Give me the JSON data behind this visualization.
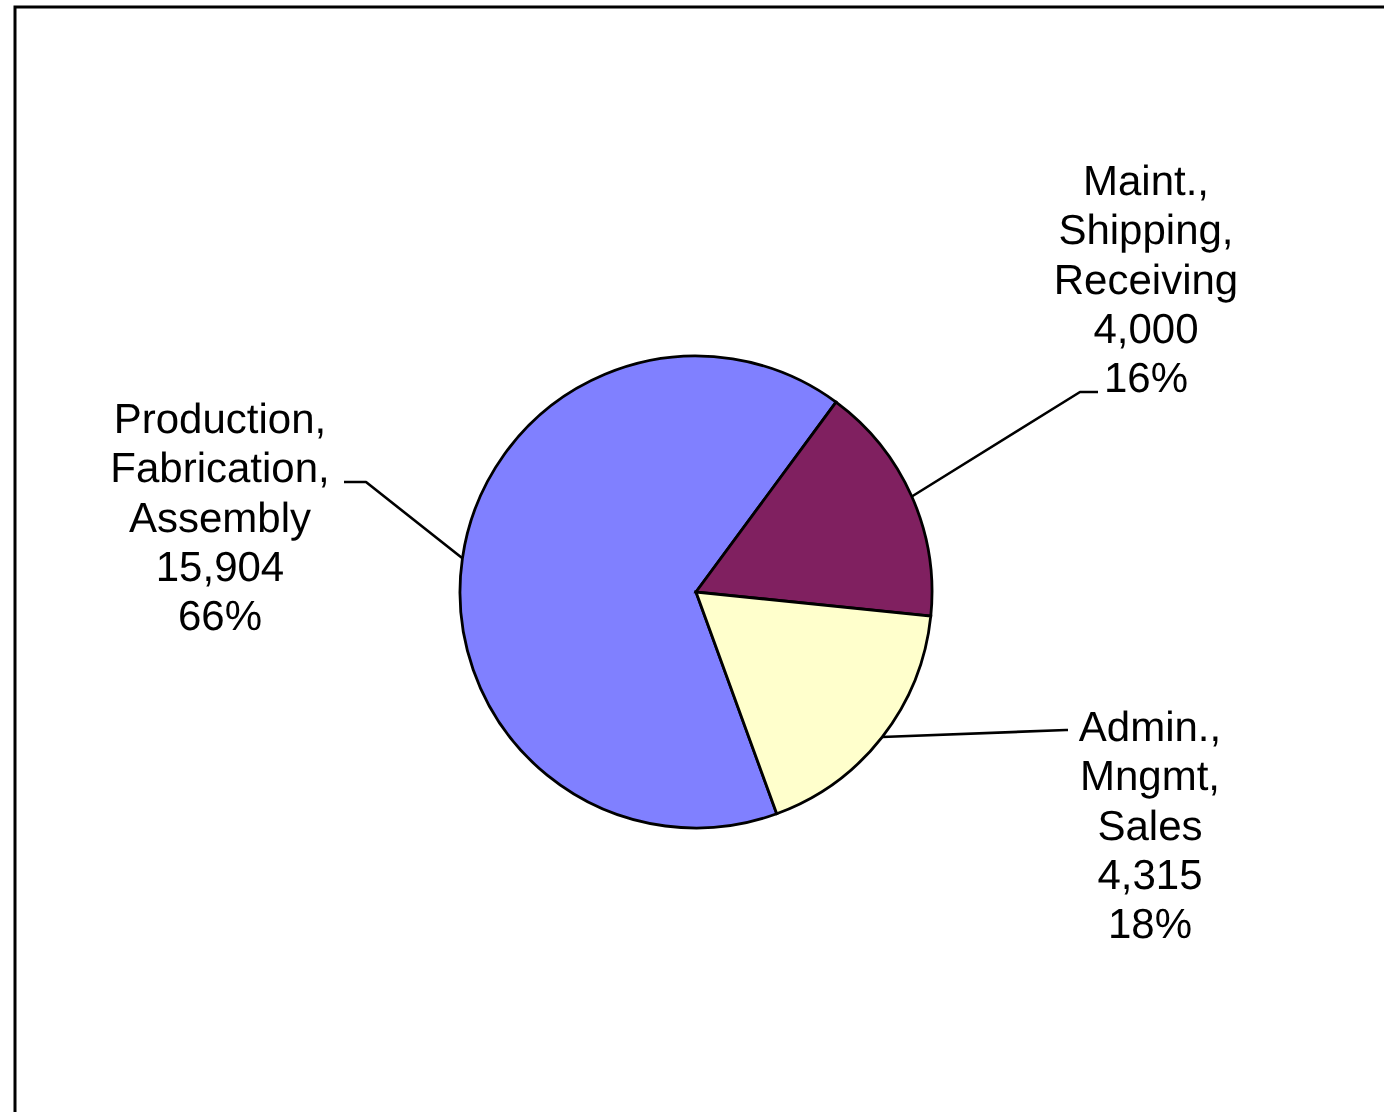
{
  "chart_data": {
    "type": "pie",
    "categories": [
      "Production, Fabrication, Assembly",
      "Maint., Shipping, Receiving",
      "Admin., Mngmt, Sales"
    ],
    "values": [
      15904,
      4000,
      4315
    ],
    "colors": [
      "#8080ff",
      "#802060",
      "#ffffcc"
    ],
    "value_labels": [
      "15,904 66%",
      "4,000 16%",
      "4,315 18%"
    ]
  }
}
